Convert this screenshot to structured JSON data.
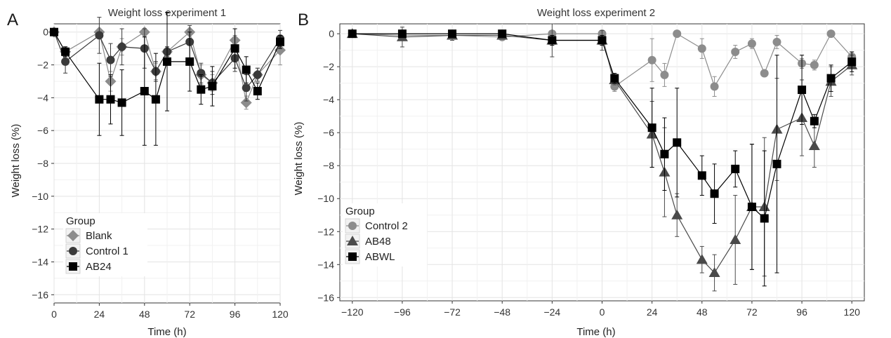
{
  "panels": [
    {
      "letter": "A",
      "title": "Weight loss experiment 1",
      "xlabel": "Time (h)",
      "ylabel": "Weight loss (%)"
    },
    {
      "letter": "B",
      "title": "Weight loss experiment 2",
      "xlabel": "Time (h)",
      "ylabel": "Weight loss (%)"
    }
  ],
  "chart_data": [
    {
      "type": "line",
      "title": "Weight loss experiment 1",
      "xlabel": "Time (h)",
      "ylabel": "Weight loss (%)",
      "xlim": [
        0,
        120
      ],
      "ylim": [
        -16.5,
        0.5
      ],
      "xticks": [
        0,
        24,
        48,
        72,
        96,
        120
      ],
      "xtick_labels": [
        "0",
        "24",
        "48",
        "72",
        "96",
        "120"
      ],
      "yticks": [
        0,
        -2,
        -4,
        -6,
        -8,
        -10,
        -12,
        -14,
        -16
      ],
      "ytick_labels": [
        "0",
        "−2",
        "−4",
        "−6",
        "−8",
        "−10",
        "−12",
        "−14",
        "−16"
      ],
      "grid": true,
      "legend": {
        "title": "Group",
        "placement": "bottom-left"
      },
      "series": [
        {
          "name": "Blank",
          "marker": "diamond",
          "color": "#8c8c8c",
          "x": [
            0,
            6,
            24,
            30,
            36,
            48,
            54,
            60,
            72,
            78,
            84,
            96,
            102,
            108,
            120
          ],
          "y": [
            0,
            -1.2,
            0,
            -3.0,
            -0.9,
            0,
            -2.4,
            -1.2,
            0,
            -2.6,
            -3.1,
            -0.5,
            -4.3,
            -2.6,
            -1.1
          ],
          "err": [
            0,
            0.3,
            0.1,
            0.6,
            0.5,
            0.1,
            0.5,
            0.3,
            0.1,
            0.6,
            0.5,
            0.3,
            0.4,
            0.4,
            0.9
          ]
        },
        {
          "name": "Control 1",
          "marker": "circle",
          "color": "#3a3a3a",
          "x": [
            0,
            6,
            24,
            30,
            36,
            48,
            54,
            60,
            72,
            78,
            84,
            96,
            102,
            108,
            120
          ],
          "y": [
            0,
            -1.8,
            -0.2,
            -1.7,
            -0.9,
            -1.0,
            -2.4,
            -1.2,
            -0.6,
            -2.5,
            -3.1,
            -1.6,
            -3.4,
            -2.6,
            -0.4
          ],
          "err": [
            0,
            0.7,
            1.1,
            1.0,
            1.1,
            1.2,
            0.6,
            0.3,
            1.0,
            0.6,
            0.7,
            0.8,
            0.8,
            0.4,
            0.5
          ]
        },
        {
          "name": "AB24",
          "marker": "square",
          "color": "#000000",
          "x": [
            0,
            6,
            24,
            30,
            36,
            48,
            54,
            60,
            72,
            78,
            84,
            96,
            102,
            108,
            120
          ],
          "y": [
            0,
            -1.2,
            -4.1,
            -4.1,
            -4.3,
            -3.6,
            -4.1,
            -1.8,
            -1.8,
            -3.5,
            -3.3,
            -1.0,
            -2.3,
            -3.6,
            -0.6
          ],
          "err": [
            0,
            0.3,
            2.2,
            1.5,
            2.0,
            3.3,
            2.8,
            3.0,
            1.8,
            0.9,
            1.2,
            1.2,
            0.8,
            0.5,
            0.4
          ]
        }
      ]
    },
    {
      "type": "line",
      "title": "Weight loss experiment 2",
      "xlabel": "Time (h)",
      "ylabel": "Weight loss (%)",
      "xlim": [
        -126,
        126
      ],
      "ylim": [
        -16.2,
        0.6
      ],
      "xticks": [
        -120,
        -96,
        -72,
        -48,
        -24,
        0,
        24,
        48,
        72,
        96,
        120
      ],
      "xtick_labels": [
        "−120",
        "−96",
        "−72",
        "−48",
        "−24",
        "0",
        "24",
        "48",
        "72",
        "96",
        "120"
      ],
      "yticks": [
        0,
        -2,
        -4,
        -6,
        -8,
        -10,
        -12,
        -14,
        -16
      ],
      "ytick_labels": [
        "0",
        "−2",
        "−4",
        "−6",
        "−8",
        "−10",
        "−12",
        "−14",
        "−16"
      ],
      "grid": true,
      "legend": {
        "title": "Group",
        "placement": "bottom-left"
      },
      "series": [
        {
          "name": "Control 2",
          "marker": "circle",
          "color": "#8c8c8c",
          "x": [
            -120,
            -96,
            -72,
            -48,
            -24,
            0,
            6,
            24,
            30,
            36,
            48,
            54,
            64,
            72,
            78,
            84,
            96,
            102,
            110,
            120
          ],
          "y": [
            0,
            -0.1,
            -0.1,
            -0.2,
            0,
            0,
            -3.2,
            -1.6,
            -2.5,
            0,
            -0.9,
            -3.2,
            -1.1,
            -0.6,
            -2.4,
            -0.5,
            -1.8,
            -1.9,
            0,
            -1.4
          ],
          "err": [
            0.1,
            0.1,
            0.1,
            0.1,
            0.1,
            0.1,
            0.3,
            1.3,
            0.7,
            0.1,
            0.6,
            0.6,
            0.4,
            0.3,
            0.2,
            0.4,
            0.3,
            0.3,
            0.1,
            0.3
          ]
        },
        {
          "name": "AB48",
          "marker": "triangle",
          "color": "#4a4a4a",
          "x": [
            -120,
            -96,
            -72,
            -48,
            -24,
            0,
            6,
            24,
            30,
            36,
            48,
            54,
            64,
            72,
            78,
            84,
            96,
            102,
            110,
            120
          ],
          "y": [
            0,
            -0.2,
            -0.1,
            -0.1,
            -0.4,
            -0.4,
            -2.8,
            -6.1,
            -8.4,
            -11.0,
            -13.7,
            -14.5,
            -12.5,
            -10.5,
            -10.5,
            -5.8,
            -5.1,
            -6.8,
            -2.9,
            -1.9
          ],
          "err": [
            0.1,
            0.6,
            0.3,
            0.2,
            1.0,
            0.6,
            0.3,
            2.0,
            2.7,
            1.3,
            0.8,
            1.1,
            2.7,
            3.8,
            4.2,
            3.1,
            2.3,
            1.3,
            0.9,
            0.6
          ]
        },
        {
          "name": "ABWL",
          "marker": "square",
          "color": "#000000",
          "x": [
            -120,
            -96,
            -72,
            -48,
            -24,
            0,
            6,
            24,
            30,
            36,
            48,
            54,
            64,
            72,
            78,
            84,
            96,
            102,
            110,
            120
          ],
          "y": [
            0,
            0,
            0,
            0,
            -0.4,
            -0.4,
            -2.7,
            -5.7,
            -7.3,
            -6.6,
            -8.6,
            -9.7,
            -8.2,
            -10.5,
            -11.2,
            -7.9,
            -3.4,
            -5.3,
            -2.7,
            -1.7
          ],
          "err": [
            0.1,
            0.1,
            0.1,
            0.1,
            0.3,
            0.3,
            0.3,
            2.4,
            2.2,
            3.3,
            1.2,
            1.8,
            1.1,
            3.8,
            4.1,
            6.6,
            2.1,
            0.4,
            0.8,
            0.6
          ]
        }
      ]
    }
  ]
}
